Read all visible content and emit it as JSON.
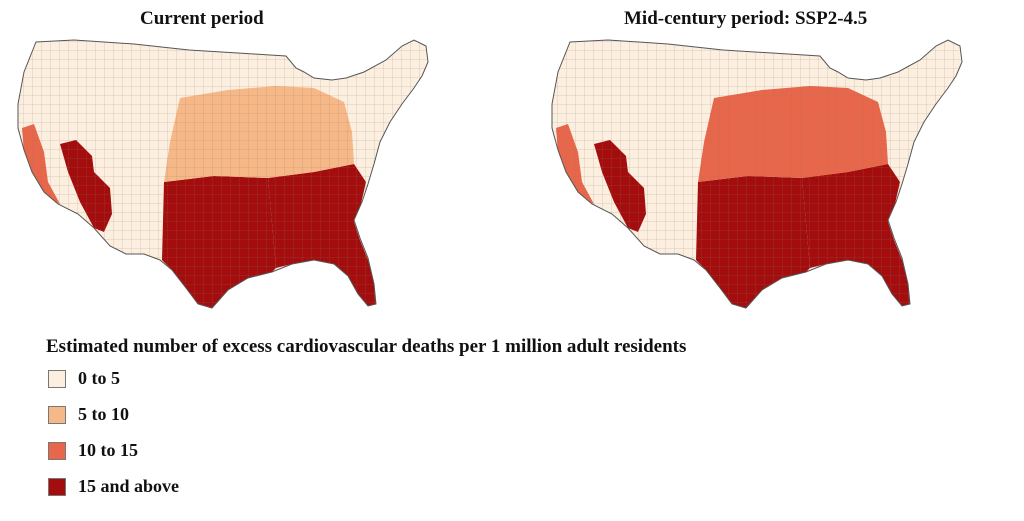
{
  "panels": [
    {
      "title": "Current period",
      "hot_regions": {
        "southeast": "15 and above",
        "south_central": "15 and above",
        "southwest_desert": "15 and above",
        "california_coast": "10 to 15",
        "midwest": "5 to 10",
        "northeast": "0 to 5",
        "northwest": "0 to 5"
      }
    },
    {
      "title": "Mid-century period: SSP2-4.5",
      "hot_regions": {
        "southeast": "15 and above",
        "south_central": "15 and above",
        "southwest_desert": "15 and above",
        "california_coast": "10 to 15",
        "midwest": "10 to 15",
        "northeast": "0 to 5",
        "northwest": "0 to 5"
      }
    }
  ],
  "legend": {
    "title": "Estimated number of excess cardiovascular deaths per 1 million adult residents",
    "items": [
      {
        "label": "0 to 5",
        "color": "#fcefdf"
      },
      {
        "label": "5 to 10",
        "color": "#f6b886"
      },
      {
        "label": "10 to 15",
        "color": "#e8664a"
      },
      {
        "label": "15 and above",
        "color": "#a30d0d"
      }
    ]
  }
}
